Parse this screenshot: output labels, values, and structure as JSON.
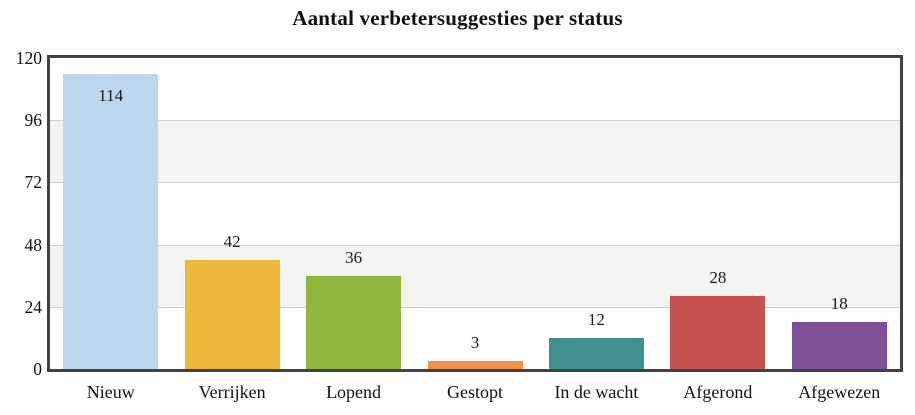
{
  "chart_data": {
    "type": "bar",
    "title": "Aantal verbetersuggesties per status",
    "categories": [
      "Nieuw",
      "Verrijken",
      "Lopend",
      "Gestopt",
      "In de wacht",
      "Afgerond",
      "Afgewezen"
    ],
    "values": [
      114,
      42,
      36,
      3,
      12,
      28,
      18
    ],
    "bar_colors": [
      "#BDD7EE",
      "#EDB83E",
      "#8FB73E",
      "#F0924A",
      "#40918E",
      "#C5524E",
      "#7F4F96"
    ],
    "value_labels": [
      "114",
      "42",
      "36",
      "3",
      "12",
      "28",
      "18"
    ],
    "xlabel": "",
    "ylabel": "",
    "ylim": [
      0,
      120
    ],
    "yticks": [
      0,
      24,
      48,
      72,
      96,
      120
    ],
    "ytick_labels": [
      "0",
      "24",
      "48",
      "72",
      "96",
      "120"
    ],
    "grid": "horizontal gridlines with alternating shaded bands",
    "legend": "none",
    "colors": {
      "frame": "#424242",
      "gridline": "#cfcfcf",
      "band_white": "#ffffff",
      "band_gray": "#f4f4f4",
      "text": "#111111",
      "background": "#ffffff"
    }
  }
}
